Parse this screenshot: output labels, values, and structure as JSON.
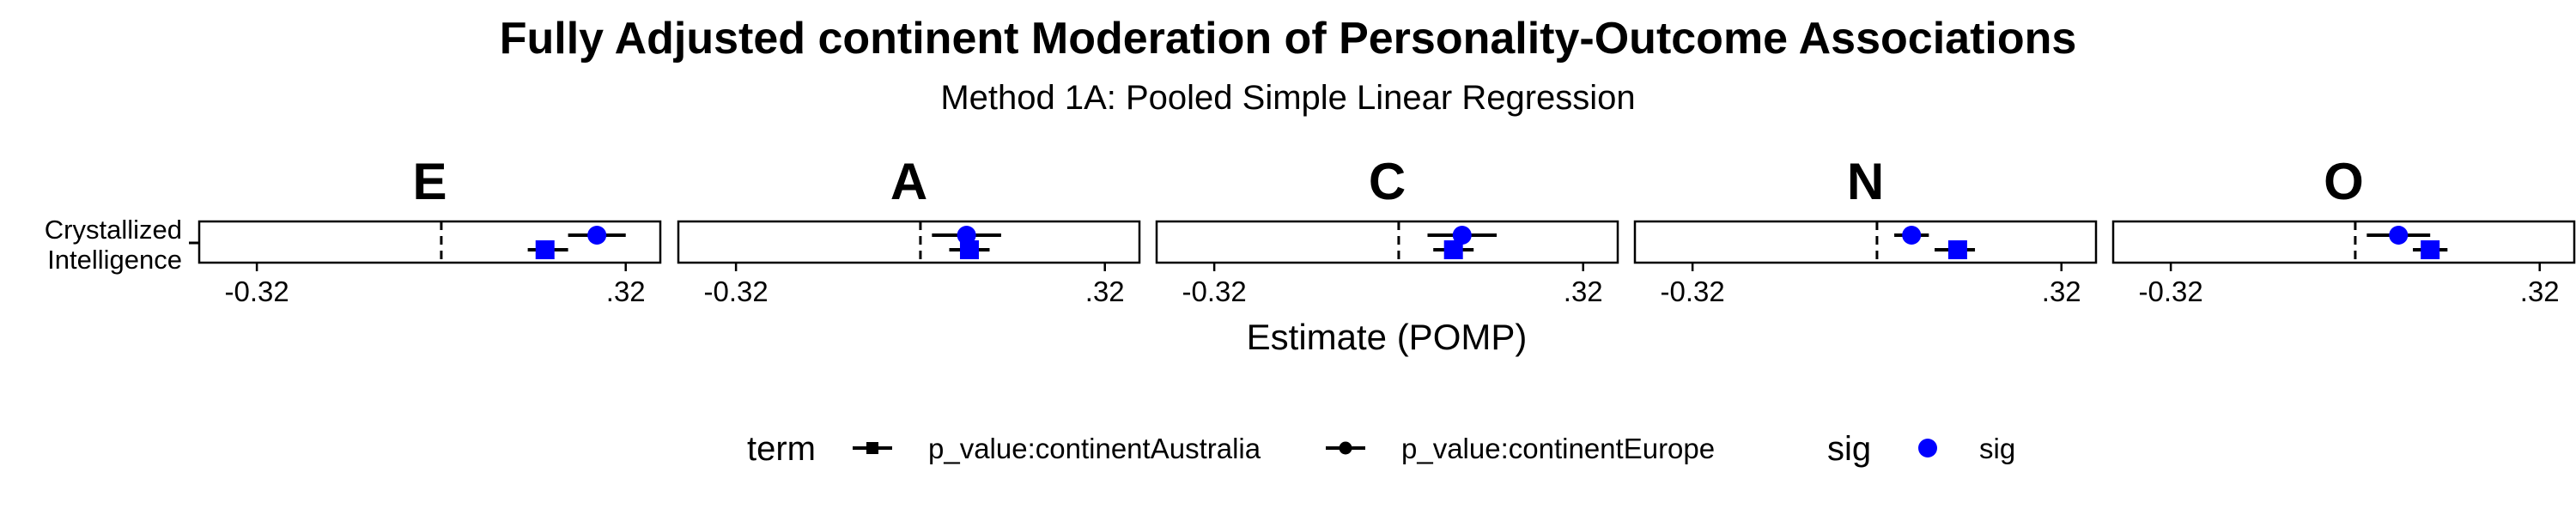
{
  "chart_data": {
    "type": "scatter",
    "title": "Fully Adjusted continent Moderation of Personality-Outcome Associations",
    "subtitle": "Method 1A: Pooled Simple Linear Regression",
    "xlabel": "Estimate (POMP)",
    "xlim": [
      -0.42,
      0.38
    ],
    "x_ticks": [
      -0.32,
      0.32
    ],
    "x_tick_labels": [
      "-0.32",
      ".32"
    ],
    "reference_line": 0,
    "y_categories": [
      "Crystallized\nIntelligence"
    ],
    "y_label_lines": [
      "Crystallized",
      "Intelligence"
    ],
    "panels": [
      {
        "name": "E",
        "series": [
          {
            "term": "p_value:continentEurope",
            "estimate": 0.27,
            "ci": [
              0.22,
              0.32
            ],
            "sig": "sig"
          },
          {
            "term": "p_value:continentAustralia",
            "estimate": 0.18,
            "ci": [
              0.15,
              0.22
            ],
            "sig": "sig"
          }
        ]
      },
      {
        "name": "A",
        "series": [
          {
            "term": "p_value:continentEurope",
            "estimate": 0.08,
            "ci": [
              0.02,
              0.14
            ],
            "sig": "sig"
          },
          {
            "term": "p_value:continentAustralia",
            "estimate": 0.085,
            "ci": [
              0.05,
              0.12
            ],
            "sig": "sig"
          }
        ]
      },
      {
        "name": "C",
        "series": [
          {
            "term": "p_value:continentEurope",
            "estimate": 0.11,
            "ci": [
              0.05,
              0.17
            ],
            "sig": "sig"
          },
          {
            "term": "p_value:continentAustralia",
            "estimate": 0.095,
            "ci": [
              0.06,
              0.13
            ],
            "sig": "sig"
          }
        ]
      },
      {
        "name": "N",
        "series": [
          {
            "term": "p_value:continentEurope",
            "estimate": 0.06,
            "ci": [
              0.03,
              0.09
            ],
            "sig": "sig"
          },
          {
            "term": "p_value:continentAustralia",
            "estimate": 0.14,
            "ci": [
              0.1,
              0.17
            ],
            "sig": "sig"
          }
        ]
      },
      {
        "name": "O",
        "series": [
          {
            "term": "p_value:continentEurope",
            "estimate": 0.075,
            "ci": [
              0.02,
              0.13
            ],
            "sig": "sig"
          },
          {
            "term": "p_value:continentAustralia",
            "estimate": 0.13,
            "ci": [
              0.1,
              0.16
            ],
            "sig": "sig"
          }
        ]
      }
    ],
    "legend": {
      "position": "bottom",
      "term_title": "term",
      "terms": [
        {
          "label": "p_value:continentAustralia",
          "shape": "square"
        },
        {
          "label": "p_value:continentEurope",
          "shape": "circle"
        }
      ],
      "sig_title": "sig",
      "sig_items": [
        {
          "label": "sig",
          "color": "#0000FF"
        }
      ]
    },
    "colors": {
      "sig": "#0000FF",
      "line": "#000000"
    },
    "grid": false
  }
}
